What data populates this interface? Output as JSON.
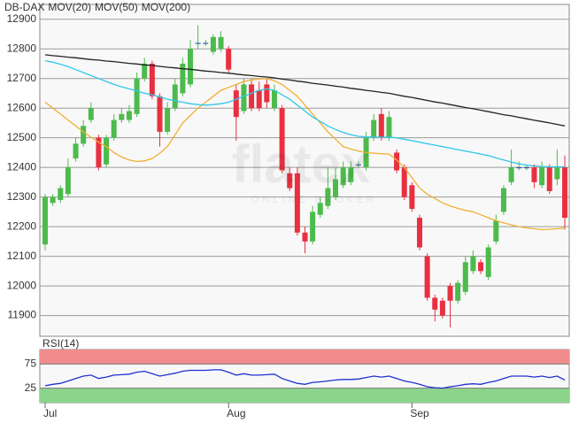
{
  "chart_data": [
    {
      "type": "candlestick",
      "name": "DB-DAX",
      "name_color": "#e83040",
      "up_color": "#4cbb4c",
      "down_color": "#e83040",
      "watermark": "flatex",
      "watermark_sub": "ONLINE BROKER",
      "categories": [
        "Jul",
        null,
        null,
        null,
        null,
        null,
        null,
        null,
        null,
        null,
        null,
        null,
        null,
        null,
        null,
        null,
        null,
        null,
        null,
        null,
        null,
        null,
        null,
        null,
        "Aug",
        null,
        null,
        null,
        null,
        null,
        null,
        null,
        null,
        null,
        null,
        null,
        null,
        null,
        null,
        null,
        null,
        null,
        null,
        null,
        null,
        null,
        null,
        null,
        "Sep",
        null,
        null,
        null,
        null,
        null,
        null,
        null,
        null,
        null,
        null,
        null,
        null,
        null,
        null,
        null,
        null,
        null,
        null,
        null,
        null
      ],
      "open": [
        12140,
        12280,
        12290,
        12310,
        12430,
        12480,
        12560,
        12500,
        12410,
        12500,
        12560,
        12560,
        12580,
        12700,
        12750,
        12640,
        12520,
        12600,
        12650,
        12680,
        12820,
        12820,
        12790,
        12800,
        12800,
        12660,
        12590,
        12680,
        12660,
        12680,
        12600,
        12600,
        12380,
        12380,
        12180,
        12150,
        12240,
        12270,
        12300,
        12340,
        12350,
        12410,
        12400,
        12500,
        12580,
        12500,
        12450,
        12400,
        12340,
        12230,
        12100,
        11960,
        11950,
        12000,
        11950,
        11980,
        12050,
        12080,
        12030,
        12150,
        12250,
        12350,
        12400,
        12400,
        12400,
        12340,
        12400,
        12360,
        12400
      ],
      "high": [
        12310,
        12310,
        12340,
        12430,
        12500,
        12560,
        12620,
        12510,
        12510,
        12580,
        12600,
        12610,
        12720,
        12770,
        12760,
        12650,
        12620,
        12700,
        12770,
        12830,
        12880,
        12830,
        12850,
        12860,
        12810,
        12680,
        12700,
        12700,
        12690,
        12700,
        12680,
        12610,
        12400,
        12400,
        12200,
        12270,
        12300,
        12400,
        12400,
        12420,
        12420,
        12420,
        12520,
        12580,
        12600,
        12590,
        12460,
        12410,
        12350,
        12240,
        12110,
        11970,
        11960,
        12010,
        12020,
        12100,
        12120,
        12090,
        12140,
        12240,
        12340,
        12460,
        12420,
        12410,
        12410,
        12420,
        12410,
        12460,
        12440
      ],
      "low": [
        12120,
        12270,
        12280,
        12300,
        12420,
        12470,
        12550,
        12390,
        12400,
        12490,
        12550,
        12550,
        12570,
        12690,
        12630,
        12470,
        12510,
        12590,
        12640,
        12670,
        12800,
        12810,
        12780,
        12790,
        12720,
        12490,
        12580,
        12590,
        12590,
        12600,
        12590,
        12380,
        12320,
        12170,
        12110,
        12140,
        12230,
        12260,
        12290,
        12330,
        12340,
        12400,
        12390,
        12490,
        12490,
        12490,
        12380,
        12290,
        12250,
        12120,
        11950,
        11880,
        11890,
        11860,
        11940,
        11970,
        12040,
        12040,
        12020,
        12140,
        12240,
        12340,
        12390,
        12390,
        12330,
        12330,
        12310,
        12340,
        12190
      ],
      "close": [
        12300,
        12300,
        12330,
        12400,
        12480,
        12540,
        12600,
        12400,
        12500,
        12560,
        12580,
        12590,
        12700,
        12750,
        12640,
        12520,
        12600,
        12680,
        12750,
        12800,
        12820,
        12820,
        12840,
        12840,
        12730,
        12570,
        12680,
        12600,
        12600,
        12620,
        12660,
        12390,
        12330,
        12180,
        12150,
        12250,
        12280,
        12330,
        12360,
        12400,
        12400,
        12410,
        12500,
        12560,
        12500,
        12570,
        12390,
        12300,
        12260,
        12130,
        11960,
        11920,
        11900,
        11950,
        12010,
        12080,
        12100,
        12050,
        12130,
        12220,
        12330,
        12400,
        12400,
        12400,
        12350,
        12400,
        12320,
        12400,
        12230
      ],
      "series": [
        {
          "name": "MOV(20)",
          "color": "#f0b030",
          "values": [
            12620,
            12600,
            12580,
            12560,
            12540,
            12520,
            12502,
            12485,
            12470,
            12450,
            12435,
            12425,
            12420,
            12422,
            12430,
            12448,
            12470,
            12510,
            12550,
            12575,
            12600,
            12620,
            12640,
            12660,
            12670,
            12680,
            12690,
            12695,
            12698,
            12700,
            12692,
            12680,
            12660,
            12640,
            12610,
            12580,
            12550,
            12520,
            12495,
            12470,
            12462,
            12455,
            12450,
            12448,
            12446,
            12445,
            12425,
            12400,
            12365,
            12330,
            12310,
            12295,
            12280,
            12270,
            12262,
            12255,
            12250,
            12240,
            12230,
            12220,
            12213,
            12206,
            12200,
            12196,
            12193,
            12190,
            12191,
            12193,
            12195
          ]
        },
        {
          "name": "MOV(50)",
          "color": "#30c8e8",
          "values": [
            12760,
            12755,
            12748,
            12740,
            12730,
            12720,
            12710,
            12700,
            12690,
            12680,
            12672,
            12665,
            12658,
            12650,
            12645,
            12638,
            12630,
            12625,
            12620,
            12615,
            12612,
            12610,
            12612,
            12615,
            12620,
            12630,
            12640,
            12650,
            12660,
            12665,
            12660,
            12645,
            12630,
            12610,
            12590,
            12570,
            12555,
            12540,
            12528,
            12518,
            12510,
            12505,
            12503,
            12502,
            12502,
            12502,
            12500,
            12495,
            12490,
            12485,
            12480,
            12475,
            12470,
            12465,
            12460,
            12455,
            12450,
            12445,
            12440,
            12432,
            12425,
            12418,
            12412,
            12408,
            12405,
            12403,
            12402,
            12402,
            12402
          ]
        },
        {
          "name": "MOV(200)",
          "color": "#222222",
          "values": [
            12780,
            12777,
            12775,
            12772,
            12770,
            12767,
            12764,
            12762,
            12759,
            12757,
            12754,
            12751,
            12749,
            12746,
            12744,
            12741,
            12738,
            12736,
            12733,
            12731,
            12728,
            12725,
            12723,
            12720,
            12718,
            12715,
            12712,
            12710,
            12707,
            12705,
            12702,
            12698,
            12695,
            12691,
            12688,
            12684,
            12681,
            12678,
            12674,
            12671,
            12667,
            12664,
            12660,
            12657,
            12653,
            12650,
            12645,
            12640,
            12636,
            12631,
            12626,
            12621,
            12617,
            12612,
            12607,
            12602,
            12598,
            12593,
            12588,
            12583,
            12578,
            12574,
            12569,
            12564,
            12559,
            12555,
            12550,
            12545,
            12540
          ]
        }
      ],
      "ylim": [
        11830,
        12950
      ],
      "yticks": [
        11900,
        12000,
        12100,
        12200,
        12300,
        12400,
        12500,
        12600,
        12700,
        12800,
        12900
      ],
      "grid": true
    },
    {
      "type": "line",
      "upper_band_color": "#f08c8c",
      "lower_band_color": "#8cd48c",
      "series": [
        {
          "name": "RSI(14)",
          "color": "#2030d0",
          "values": [
            30,
            33,
            35,
            40,
            45,
            50,
            52,
            45,
            48,
            52,
            53,
            54,
            58,
            60,
            55,
            50,
            53,
            56,
            60,
            62,
            62,
            62,
            63,
            63,
            58,
            52,
            55,
            52,
            52,
            53,
            54,
            45,
            40,
            35,
            33,
            37,
            38,
            40,
            42,
            43,
            43,
            44,
            47,
            50,
            48,
            50,
            45,
            40,
            37,
            33,
            28,
            26,
            25,
            28,
            30,
            33,
            34,
            33,
            37,
            40,
            45,
            50,
            50,
            50,
            48,
            50,
            47,
            50,
            42
          ]
        }
      ],
      "ylim": [
        -5,
        105
      ],
      "yticks": [
        25,
        75
      ]
    }
  ]
}
